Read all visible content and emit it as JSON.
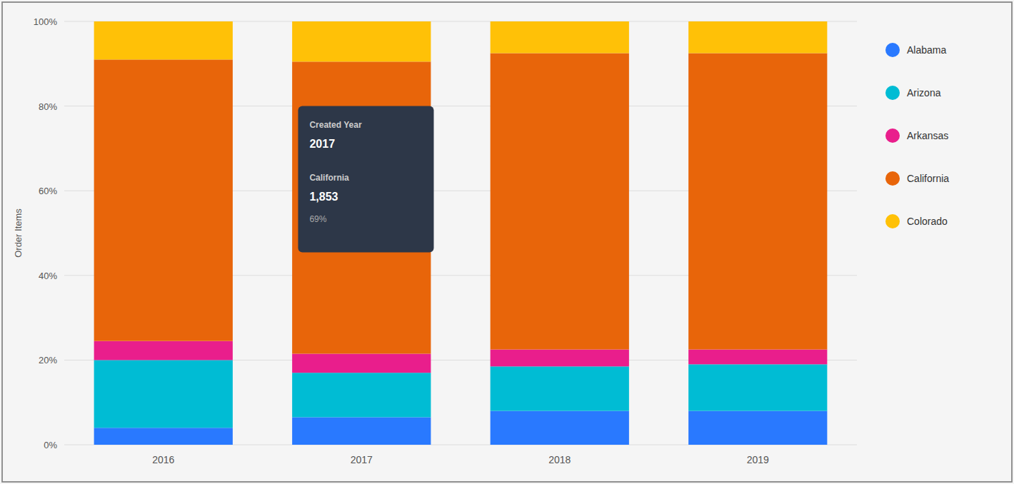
{
  "chart_data": {
    "type": "bar",
    "stacked": true,
    "y_label": "Order Items",
    "categories": [
      "2016",
      "2017",
      "2018",
      "2019"
    ],
    "series": [
      {
        "name": "Alabama",
        "color": "#2979FF",
        "values": [
          4.0,
          6.5,
          8.0,
          8.0
        ]
      },
      {
        "name": "Arizona",
        "color": "#00BCD4",
        "values": [
          16.0,
          10.5,
          10.5,
          11.0
        ]
      },
      {
        "name": "Arkansas",
        "color": "#E91E8C",
        "values": [
          4.5,
          4.5,
          4.0,
          3.5
        ]
      },
      {
        "name": "California",
        "color": "#E8650A",
        "values": [
          66.5,
          69.0,
          70.0,
          70.0
        ]
      },
      {
        "name": "Colorado",
        "color": "#FFC107",
        "values": [
          9.0,
          9.5,
          7.5,
          7.5
        ]
      }
    ],
    "ylim": [
      0,
      100
    ],
    "yticks": [
      {
        "value": 0,
        "label": "0%"
      },
      {
        "value": 20,
        "label": "20%"
      },
      {
        "value": 40,
        "label": "40%"
      },
      {
        "value": 60,
        "label": "60%"
      },
      {
        "value": 80,
        "label": "80%"
      },
      {
        "value": 100,
        "label": "100%"
      }
    ],
    "grid": true,
    "legend": "right",
    "annotations": [
      "Created Year",
      "2017",
      "California",
      "1,853",
      "69%"
    ]
  }
}
